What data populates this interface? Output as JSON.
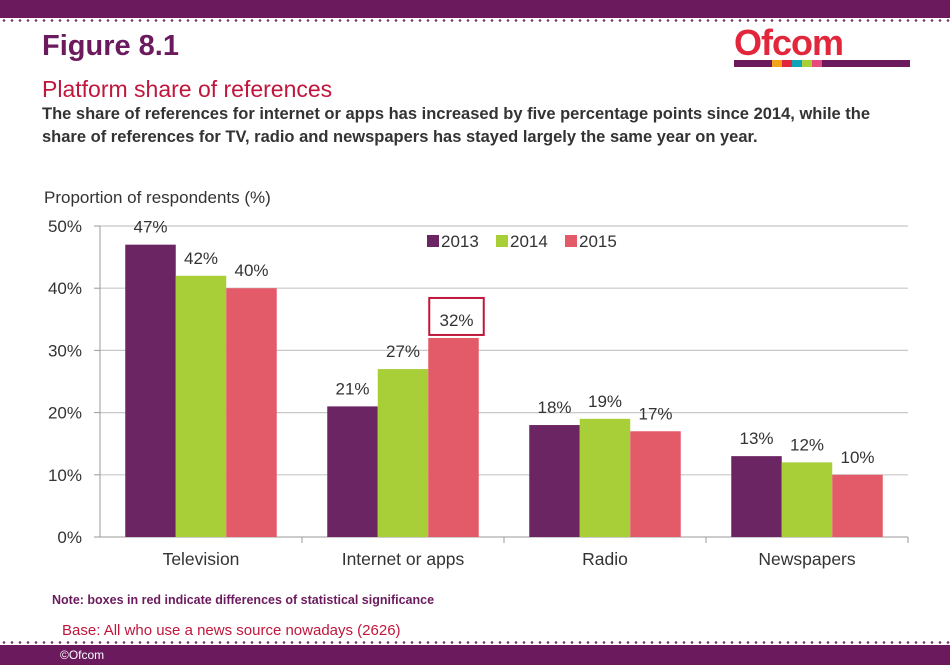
{
  "header": {
    "figure_label": "Figure 8.1",
    "subtitle": "Platform share of references",
    "description": "The share of references for internet or apps has increased by five percentage points since 2014, while the share of references for TV, radio and newspapers has stayed largely the same year on year."
  },
  "logo": {
    "text": "Ofcom"
  },
  "chart_data": {
    "type": "bar",
    "title": "Platform share of references",
    "ylabel": "Proportion of respondents (%)",
    "xlabel": "",
    "ylim": [
      0,
      50
    ],
    "yticks": [
      0,
      10,
      20,
      30,
      40,
      50
    ],
    "ytick_labels": [
      "0%",
      "10%",
      "20%",
      "30%",
      "40%",
      "50%"
    ],
    "grid": true,
    "legend_position": "top-center",
    "categories": [
      "Television",
      "Internet or apps",
      "Radio",
      "Newspapers"
    ],
    "series": [
      {
        "name": "2013",
        "color": "#6b2563",
        "values": [
          47,
          21,
          18,
          13
        ],
        "labels": [
          "47%",
          "21%",
          "18%",
          "13%"
        ]
      },
      {
        "name": "2014",
        "color": "#a9cf38",
        "values": [
          42,
          27,
          19,
          12
        ],
        "labels": [
          "42%",
          "27%",
          "19%",
          "12%"
        ]
      },
      {
        "name": "2015",
        "color": "#e35a69",
        "values": [
          40,
          32,
          17,
          10
        ],
        "labels": [
          "40%",
          "32%",
          "17%",
          "10%"
        ]
      }
    ],
    "significance_highlights": [
      {
        "series": "2015",
        "category": "Internet or apps",
        "box_color": "#c0163b"
      }
    ]
  },
  "footer": {
    "note": "Note: boxes in red indicate differences of statistical significance",
    "base": "Base: All who use a news source nowadays (2626)",
    "copyright": "©Ofcom"
  },
  "colors": {
    "brand_purple": "#6b1a5e",
    "brand_red": "#c0163b"
  }
}
